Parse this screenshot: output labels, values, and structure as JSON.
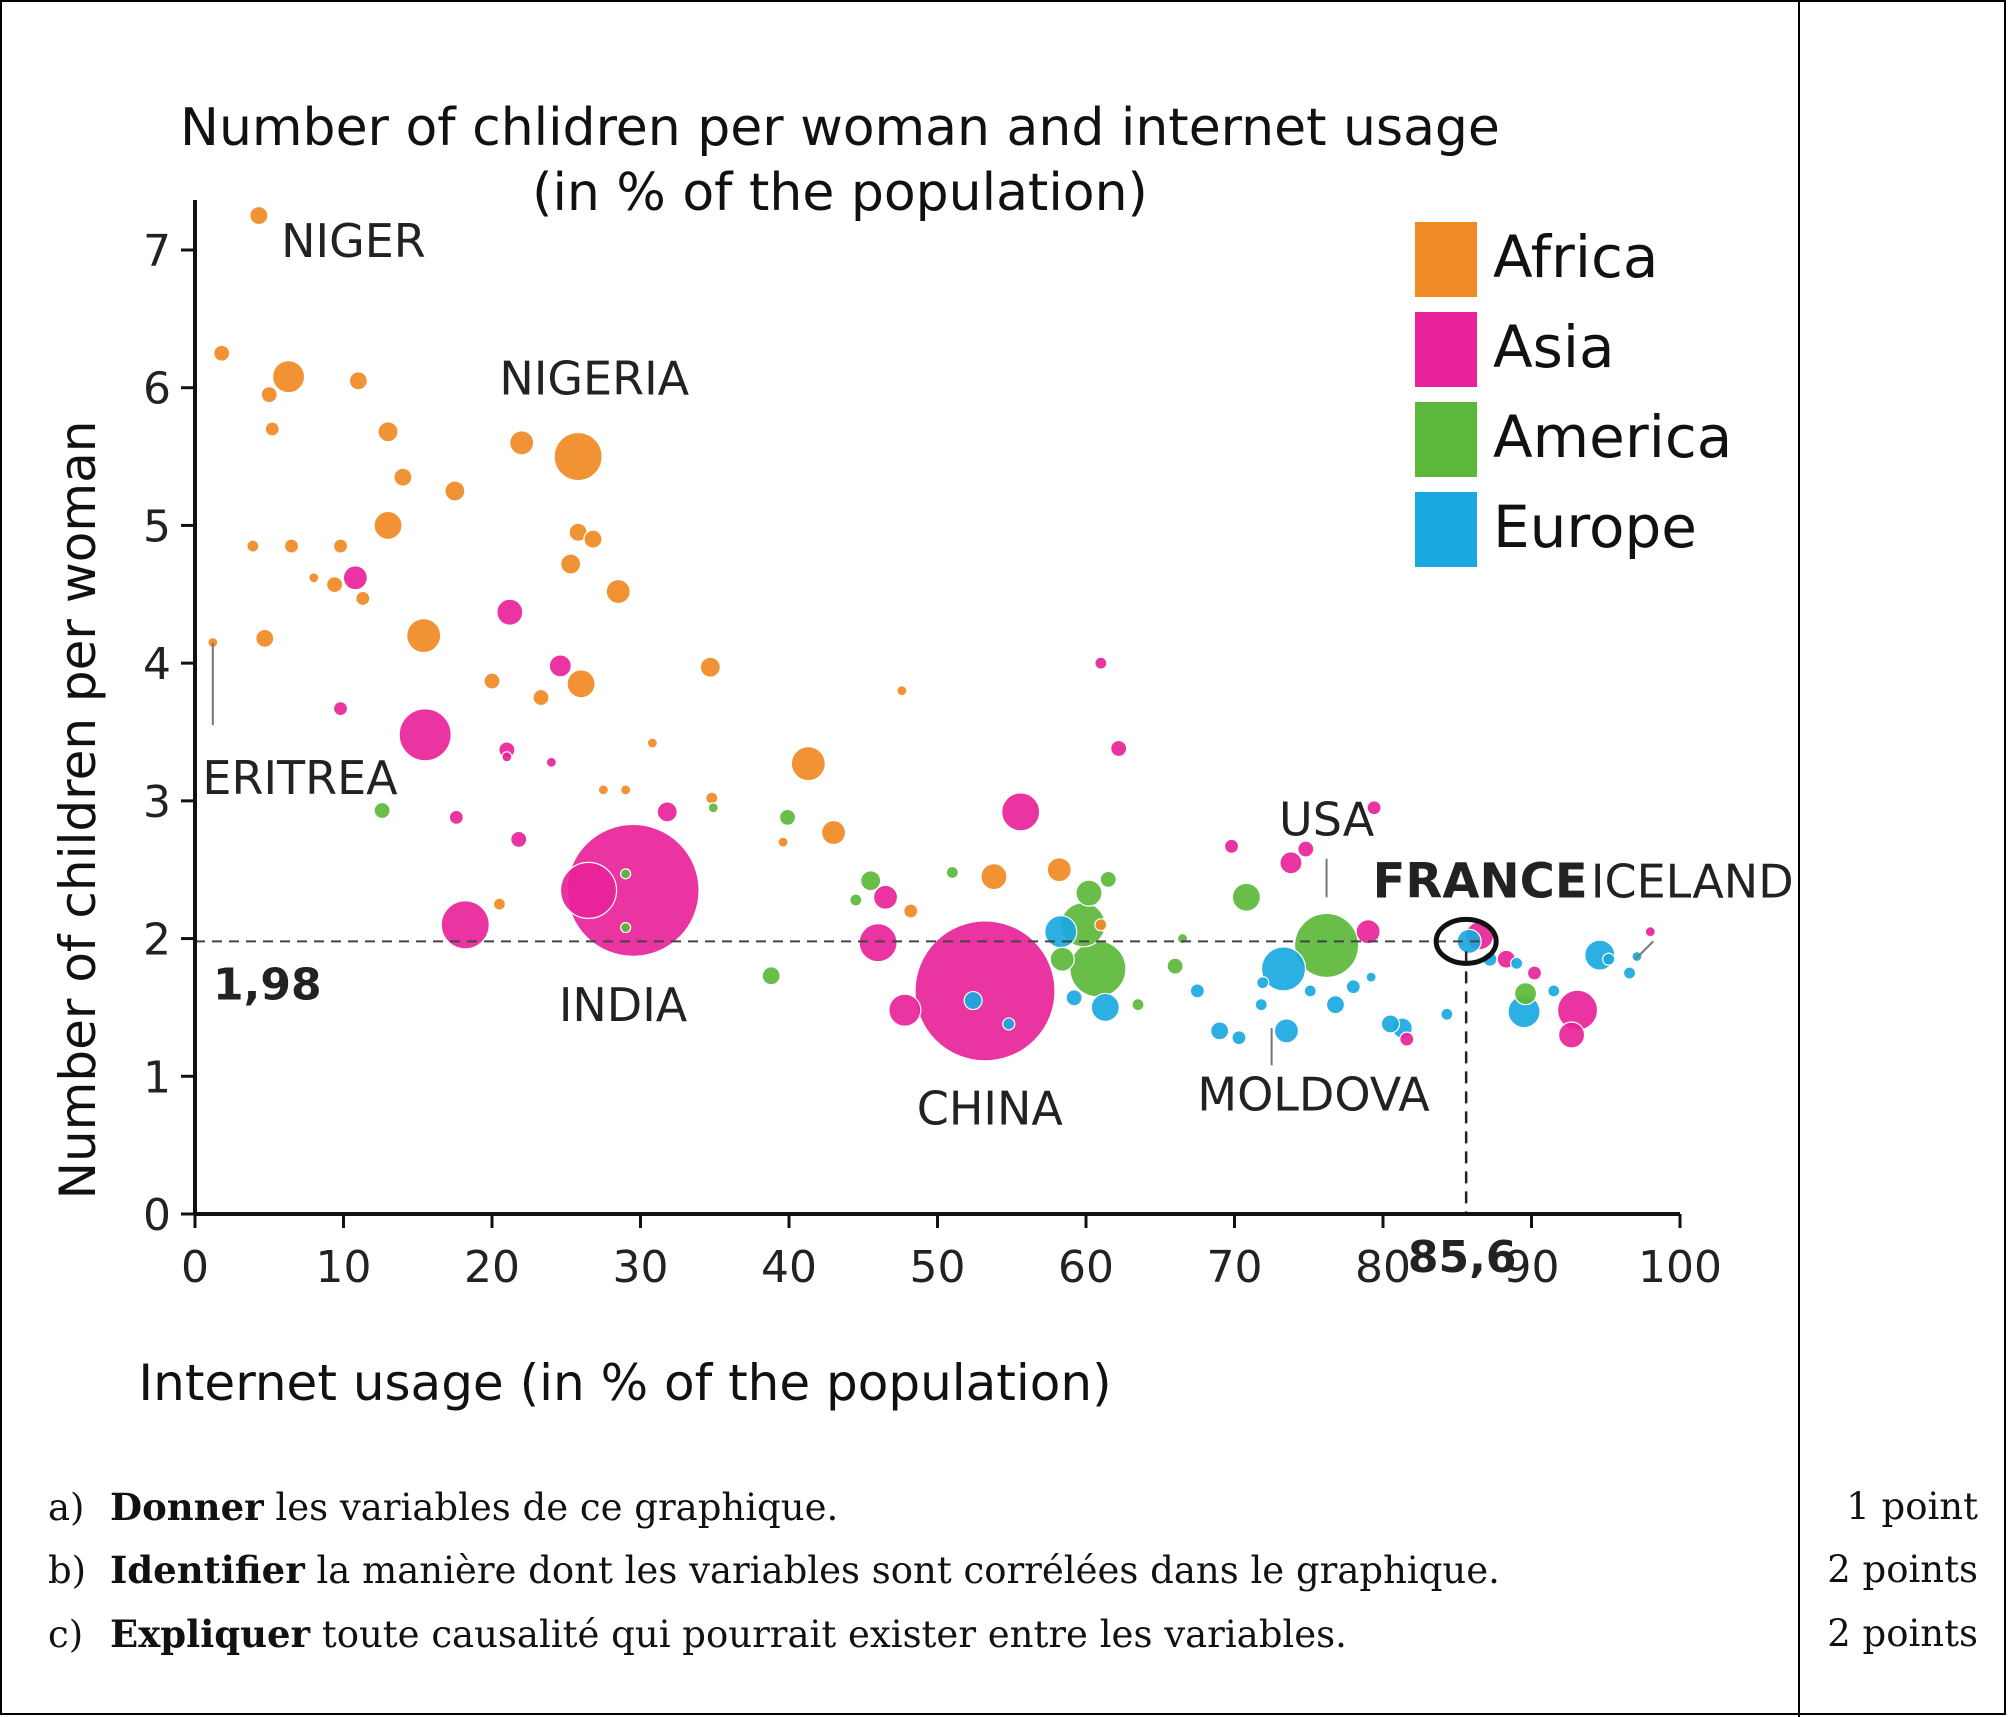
{
  "chart_data": {
    "type": "scatter",
    "title": "Number of chlidren per woman and internet usage",
    "subtitle": "(in % of the population)",
    "xlabel": "Internet usage (in % of the population)",
    "ylabel": "Number of children per woman",
    "xlim": [
      0,
      100
    ],
    "ylim": [
      0,
      7.4
    ],
    "x_ticks": [
      "0",
      "10",
      "20",
      "30",
      "40",
      "50",
      "60",
      "70",
      "80",
      "90",
      "100"
    ],
    "y_ticks": [
      "0",
      "1",
      "2",
      "3",
      "4",
      "5",
      "6",
      "7"
    ],
    "grid": false,
    "legend_position": "top-right",
    "bubble_sizes": "population",
    "reference_lines": [
      {
        "axis": "y",
        "value": 1.98,
        "label": "1,98"
      },
      {
        "axis": "x",
        "value": 85.6,
        "label": "85,6"
      }
    ],
    "series": [
      {
        "name": "Africa",
        "color": "#f08a24",
        "points": [
          {
            "x": 4.3,
            "y": 7.25,
            "r": 9
          },
          {
            "x": 1.8,
            "y": 6.25,
            "r": 8
          },
          {
            "x": 6.3,
            "y": 6.08,
            "r": 16
          },
          {
            "x": 5.0,
            "y": 5.95,
            "r": 8
          },
          {
            "x": 11.0,
            "y": 6.05,
            "r": 9
          },
          {
            "x": 5.2,
            "y": 5.7,
            "r": 7
          },
          {
            "x": 13.0,
            "y": 5.68,
            "r": 10
          },
          {
            "x": 22.0,
            "y": 5.6,
            "r": 12
          },
          {
            "x": 25.8,
            "y": 5.5,
            "r": 24
          },
          {
            "x": 14.0,
            "y": 5.35,
            "r": 9
          },
          {
            "x": 17.5,
            "y": 5.25,
            "r": 10
          },
          {
            "x": 13.0,
            "y": 5.0,
            "r": 14
          },
          {
            "x": 25.8,
            "y": 4.95,
            "r": 9
          },
          {
            "x": 26.8,
            "y": 4.9,
            "r": 9
          },
          {
            "x": 3.9,
            "y": 4.85,
            "r": 6
          },
          {
            "x": 6.5,
            "y": 4.85,
            "r": 7
          },
          {
            "x": 9.8,
            "y": 4.85,
            "r": 7
          },
          {
            "x": 25.3,
            "y": 4.72,
            "r": 10
          },
          {
            "x": 8.0,
            "y": 4.62,
            "r": 5
          },
          {
            "x": 9.4,
            "y": 4.57,
            "r": 8
          },
          {
            "x": 11.3,
            "y": 4.47,
            "r": 7
          },
          {
            "x": 28.5,
            "y": 4.52,
            "r": 12
          },
          {
            "x": 15.4,
            "y": 4.2,
            "r": 17
          },
          {
            "x": 4.7,
            "y": 4.18,
            "r": 9
          },
          {
            "x": 1.2,
            "y": 4.15,
            "r": 5
          },
          {
            "x": 20.0,
            "y": 3.87,
            "r": 8
          },
          {
            "x": 26.0,
            "y": 3.85,
            "r": 14
          },
          {
            "x": 23.3,
            "y": 3.75,
            "r": 8
          },
          {
            "x": 34.7,
            "y": 3.97,
            "r": 10
          },
          {
            "x": 41.3,
            "y": 3.27,
            "r": 17
          },
          {
            "x": 43.0,
            "y": 2.77,
            "r": 12
          },
          {
            "x": 30.8,
            "y": 3.42,
            "r": 5
          },
          {
            "x": 27.5,
            "y": 3.08,
            "r": 5
          },
          {
            "x": 29.0,
            "y": 3.08,
            "r": 5
          },
          {
            "x": 34.8,
            "y": 3.02,
            "r": 6
          },
          {
            "x": 53.8,
            "y": 2.45,
            "r": 13
          },
          {
            "x": 58.2,
            "y": 2.5,
            "r": 12
          },
          {
            "x": 48.2,
            "y": 2.2,
            "r": 7
          },
          {
            "x": 20.5,
            "y": 2.25,
            "r": 6
          },
          {
            "x": 47.6,
            "y": 3.8,
            "r": 5
          },
          {
            "x": 39.6,
            "y": 2.7,
            "r": 5
          },
          {
            "x": 61.0,
            "y": 2.1,
            "r": 6
          }
        ]
      },
      {
        "name": "Asia",
        "color": "#e8239a",
        "points": [
          {
            "x": 29.5,
            "y": 2.35,
            "r": 66
          },
          {
            "x": 53.2,
            "y": 1.62,
            "r": 70
          },
          {
            "x": 15.5,
            "y": 3.48,
            "r": 26
          },
          {
            "x": 18.2,
            "y": 2.1,
            "r": 24
          },
          {
            "x": 26.5,
            "y": 2.35,
            "r": 28
          },
          {
            "x": 10.8,
            "y": 4.62,
            "r": 12
          },
          {
            "x": 21.2,
            "y": 4.37,
            "r": 13
          },
          {
            "x": 24.6,
            "y": 3.98,
            "r": 11
          },
          {
            "x": 9.8,
            "y": 3.67,
            "r": 7
          },
          {
            "x": 21.0,
            "y": 3.37,
            "r": 8
          },
          {
            "x": 24.0,
            "y": 3.28,
            "r": 5
          },
          {
            "x": 31.8,
            "y": 2.92,
            "r": 10
          },
          {
            "x": 17.6,
            "y": 2.88,
            "r": 7
          },
          {
            "x": 21.8,
            "y": 2.72,
            "r": 8
          },
          {
            "x": 55.6,
            "y": 2.92,
            "r": 19
          },
          {
            "x": 46.5,
            "y": 2.3,
            "r": 12
          },
          {
            "x": 46.0,
            "y": 1.97,
            "r": 19
          },
          {
            "x": 47.8,
            "y": 1.48,
            "r": 16
          },
          {
            "x": 61.0,
            "y": 4.0,
            "r": 6
          },
          {
            "x": 62.2,
            "y": 3.38,
            "r": 8
          },
          {
            "x": 69.8,
            "y": 2.67,
            "r": 7
          },
          {
            "x": 73.8,
            "y": 2.55,
            "r": 11
          },
          {
            "x": 74.8,
            "y": 2.65,
            "r": 8
          },
          {
            "x": 79.4,
            "y": 2.95,
            "r": 7
          },
          {
            "x": 79.0,
            "y": 2.05,
            "r": 12
          },
          {
            "x": 86.5,
            "y": 2.02,
            "r": 14
          },
          {
            "x": 88.3,
            "y": 1.85,
            "r": 9
          },
          {
            "x": 90.2,
            "y": 1.75,
            "r": 7
          },
          {
            "x": 93.1,
            "y": 1.48,
            "r": 20
          },
          {
            "x": 92.7,
            "y": 1.3,
            "r": 13
          },
          {
            "x": 81.6,
            "y": 1.27,
            "r": 7
          },
          {
            "x": 98.0,
            "y": 2.05,
            "r": 5
          },
          {
            "x": 21.0,
            "y": 3.32,
            "r": 5
          }
        ]
      },
      {
        "name": "America",
        "color": "#5cb83b",
        "points": [
          {
            "x": 76.2,
            "y": 1.95,
            "r": 32
          },
          {
            "x": 60.8,
            "y": 1.78,
            "r": 28
          },
          {
            "x": 59.8,
            "y": 2.1,
            "r": 22
          },
          {
            "x": 60.2,
            "y": 2.33,
            "r": 13
          },
          {
            "x": 58.4,
            "y": 1.85,
            "r": 12
          },
          {
            "x": 70.8,
            "y": 2.3,
            "r": 14
          },
          {
            "x": 45.5,
            "y": 2.42,
            "r": 10
          },
          {
            "x": 12.6,
            "y": 2.93,
            "r": 8
          },
          {
            "x": 39.9,
            "y": 2.88,
            "r": 8
          },
          {
            "x": 38.8,
            "y": 1.73,
            "r": 9
          },
          {
            "x": 61.5,
            "y": 2.43,
            "r": 8
          },
          {
            "x": 66.0,
            "y": 1.8,
            "r": 8
          },
          {
            "x": 89.6,
            "y": 1.6,
            "r": 11
          },
          {
            "x": 51.0,
            "y": 2.48,
            "r": 6
          },
          {
            "x": 63.5,
            "y": 1.52,
            "r": 6
          },
          {
            "x": 66.5,
            "y": 2.0,
            "r": 5
          },
          {
            "x": 29.0,
            "y": 2.47,
            "r": 5
          },
          {
            "x": 29.0,
            "y": 2.08,
            "r": 5
          },
          {
            "x": 34.9,
            "y": 2.95,
            "r": 5
          },
          {
            "x": 44.5,
            "y": 2.28,
            "r": 6
          }
        ]
      },
      {
        "name": "Europe",
        "color": "#1aa8e0",
        "points": [
          {
            "x": 73.3,
            "y": 1.78,
            "r": 22
          },
          {
            "x": 85.8,
            "y": 1.98,
            "r": 12
          },
          {
            "x": 89.5,
            "y": 1.47,
            "r": 16
          },
          {
            "x": 94.6,
            "y": 1.88,
            "r": 15
          },
          {
            "x": 58.3,
            "y": 2.05,
            "r": 16
          },
          {
            "x": 61.3,
            "y": 1.5,
            "r": 14
          },
          {
            "x": 59.2,
            "y": 1.57,
            "r": 8
          },
          {
            "x": 52.4,
            "y": 1.55,
            "r": 9
          },
          {
            "x": 54.8,
            "y": 1.38,
            "r": 6
          },
          {
            "x": 67.5,
            "y": 1.62,
            "r": 7
          },
          {
            "x": 71.9,
            "y": 1.68,
            "r": 6
          },
          {
            "x": 69.0,
            "y": 1.33,
            "r": 9
          },
          {
            "x": 70.3,
            "y": 1.28,
            "r": 7
          },
          {
            "x": 73.5,
            "y": 1.33,
            "r": 12
          },
          {
            "x": 71.8,
            "y": 1.52,
            "r": 6
          },
          {
            "x": 75.1,
            "y": 1.62,
            "r": 6
          },
          {
            "x": 76.8,
            "y": 1.52,
            "r": 9
          },
          {
            "x": 78.0,
            "y": 1.65,
            "r": 7
          },
          {
            "x": 79.2,
            "y": 1.72,
            "r": 5
          },
          {
            "x": 80.5,
            "y": 1.38,
            "r": 9
          },
          {
            "x": 81.3,
            "y": 1.35,
            "r": 10
          },
          {
            "x": 84.3,
            "y": 1.45,
            "r": 6
          },
          {
            "x": 87.2,
            "y": 1.85,
            "r": 7
          },
          {
            "x": 89.0,
            "y": 1.82,
            "r": 6
          },
          {
            "x": 91.5,
            "y": 1.62,
            "r": 6
          },
          {
            "x": 96.6,
            "y": 1.75,
            "r": 6
          },
          {
            "x": 97.1,
            "y": 1.87,
            "r": 5
          },
          {
            "x": 95.2,
            "y": 1.85,
            "r": 6
          }
        ]
      }
    ],
    "annotations": [
      {
        "label": "NIGER",
        "x": 5.8,
        "y": 6.95,
        "bold": false
      },
      {
        "label": "NIGERIA",
        "x": 20.5,
        "y": 5.95,
        "bold": false
      },
      {
        "label": "ERITREA",
        "x": 0.5,
        "y": 3.05,
        "bold": false
      },
      {
        "label": "INDIA",
        "x": 24.5,
        "y": 1.4,
        "bold": false
      },
      {
        "label": "CHINA",
        "x": 48.6,
        "y": 0.65,
        "bold": false
      },
      {
        "label": "MOLDOVA",
        "x": 67.5,
        "y": 0.75,
        "bold": false
      },
      {
        "label": "USA",
        "x": 73.0,
        "y": 2.75,
        "bold": false
      },
      {
        "label": "FRANCE",
        "x": 79.3,
        "y": 2.3,
        "bold": true
      },
      {
        "label": "ICELAND",
        "x": 94.0,
        "y": 2.3,
        "bold": false
      }
    ]
  },
  "questions": [
    {
      "letter": "a)",
      "verb": "Donner",
      "rest": "les variables de ce graphique.",
      "points": "1 point"
    },
    {
      "letter": "b)",
      "verb": "Identifier",
      "rest": "la manière dont les variables sont corrélées dans le graphique.",
      "points": "2 points"
    },
    {
      "letter": "c)",
      "verb": "Expliquer",
      "rest": "toute causalité qui pourrait exister entre les variables.",
      "points": "2 points"
    }
  ]
}
